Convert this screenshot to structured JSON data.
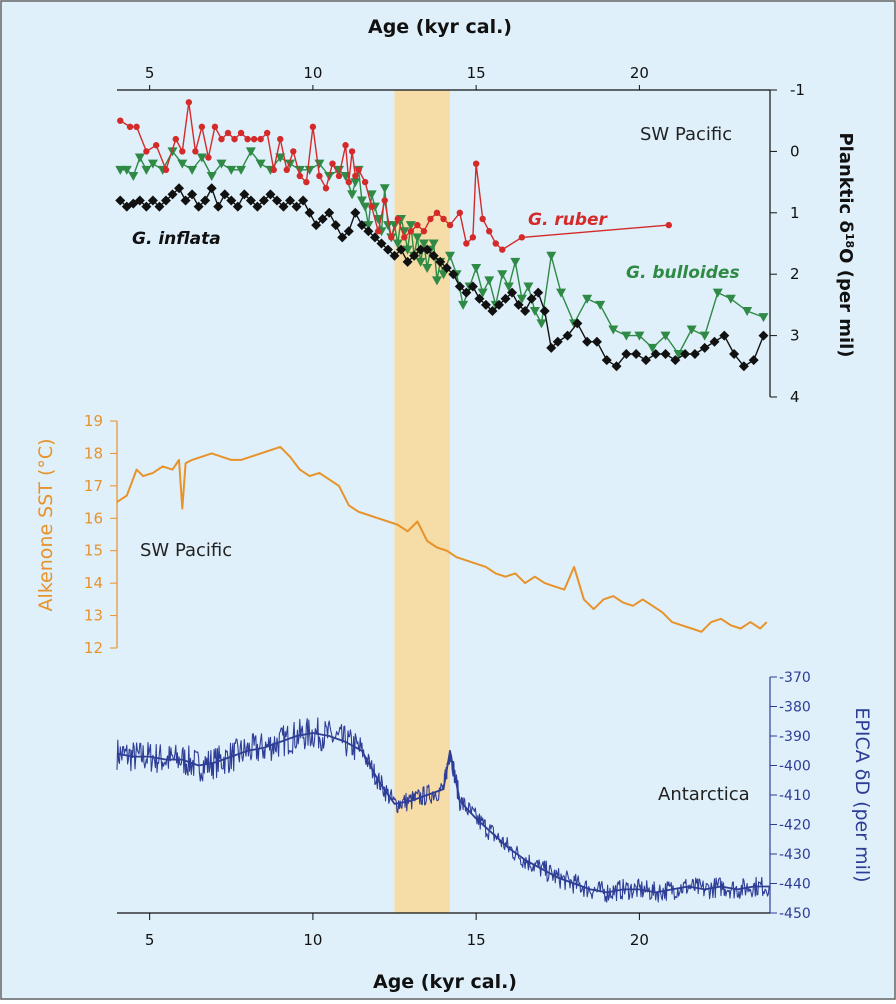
{
  "colors": {
    "background": "#dff0fa",
    "border": "#555555",
    "highlight_band": "#f6dca6",
    "red": "#d42a2a",
    "green": "#2e8a45",
    "black": "#111111",
    "orange": "#e8922a",
    "blue": "#2e3d96",
    "axis": "#111111"
  },
  "chart_data": [
    {
      "type": "line",
      "panel": "planktic",
      "top_xlabel": "Age (kyr cal.)",
      "x_ticks": [
        5,
        10,
        15,
        20
      ],
      "xlim": [
        4,
        24
      ],
      "ylabel": "Planktic δ18O (per mil)",
      "ylabel_parts": [
        "Planktic δ",
        "18",
        "O (per mil)"
      ],
      "y_ticks": [
        "-1",
        "0",
        "1",
        "2",
        "3",
        "4"
      ],
      "ylim": [
        -1,
        4
      ],
      "y_inverted": true,
      "region_label": "SW Pacific",
      "highlight_band": [
        12.5,
        14.2
      ],
      "series": [
        {
          "name": "G. ruber",
          "marker": "circle",
          "x": [
            4.1,
            4.4,
            4.6,
            4.9,
            5.2,
            5.5,
            5.8,
            6.0,
            6.2,
            6.4,
            6.6,
            6.8,
            7.0,
            7.2,
            7.4,
            7.6,
            7.8,
            8.0,
            8.2,
            8.4,
            8.6,
            8.8,
            9.0,
            9.2,
            9.4,
            9.6,
            9.8,
            10.0,
            10.2,
            10.4,
            10.6,
            10.8,
            11.0,
            11.1,
            11.2,
            11.3,
            11.4,
            11.6,
            11.8,
            12.0,
            12.2,
            12.4,
            12.6,
            12.8,
            13.0,
            13.2,
            13.4,
            13.6,
            13.8,
            14.0,
            14.2,
            14.5,
            14.7,
            14.9,
            15.0,
            15.2,
            15.4,
            15.6,
            15.8,
            16.4,
            20.9
          ],
          "y": [
            -0.5,
            -0.4,
            -0.4,
            0.0,
            -0.1,
            0.3,
            -0.2,
            0.0,
            -0.8,
            0.0,
            -0.4,
            0.1,
            -0.4,
            -0.2,
            -0.3,
            -0.2,
            -0.3,
            -0.2,
            -0.2,
            -0.2,
            -0.3,
            0.3,
            -0.2,
            0.3,
            0.0,
            0.4,
            0.5,
            -0.4,
            0.4,
            0.6,
            0.2,
            0.4,
            -0.1,
            0.5,
            0.0,
            0.4,
            0.3,
            0.5,
            0.9,
            1.3,
            0.8,
            1.4,
            1.1,
            1.4,
            1.3,
            1.2,
            1.3,
            1.1,
            1.0,
            1.1,
            1.2,
            1.0,
            1.5,
            1.4,
            0.2,
            1.1,
            1.3,
            1.5,
            1.6,
            1.4,
            1.2
          ]
        },
        {
          "name": "G. bulloides",
          "marker": "triangle",
          "x": [
            4.1,
            4.3,
            4.5,
            4.7,
            4.9,
            5.1,
            5.4,
            5.7,
            6.0,
            6.3,
            6.6,
            6.9,
            7.2,
            7.5,
            7.8,
            8.1,
            8.4,
            8.7,
            9.0,
            9.3,
            9.6,
            9.9,
            10.2,
            10.5,
            10.8,
            11.0,
            11.2,
            11.3,
            11.4,
            11.5,
            11.6,
            11.7,
            11.8,
            11.9,
            12.0,
            12.1,
            12.2,
            12.3,
            12.4,
            12.5,
            12.6,
            12.7,
            12.8,
            12.9,
            13.0,
            13.1,
            13.2,
            13.3,
            13.4,
            13.5,
            13.6,
            13.7,
            13.8,
            13.9,
            14.0,
            14.2,
            14.4,
            14.6,
            14.8,
            15.0,
            15.2,
            15.4,
            15.6,
            15.8,
            16.0,
            16.2,
            16.4,
            16.6,
            16.8,
            17.0,
            17.3,
            17.6,
            18.0,
            18.4,
            18.8,
            19.2,
            19.6,
            20.0,
            20.4,
            20.8,
            21.2,
            21.6,
            22.0,
            22.4,
            22.8,
            23.3,
            23.8
          ],
          "y": [
            0.3,
            0.3,
            0.4,
            0.1,
            0.3,
            0.2,
            0.3,
            0.0,
            0.2,
            0.3,
            0.1,
            0.4,
            0.2,
            0.3,
            0.3,
            0.0,
            0.2,
            0.3,
            0.1,
            0.2,
            0.3,
            0.3,
            0.2,
            0.4,
            0.3,
            0.4,
            0.7,
            0.5,
            0.3,
            0.8,
            0.9,
            1.2,
            0.7,
            0.9,
            1.1,
            1.3,
            0.6,
            1.2,
            1.4,
            1.2,
            1.5,
            1.1,
            1.3,
            1.6,
            1.2,
            1.7,
            1.4,
            1.8,
            1.5,
            1.9,
            1.6,
            1.5,
            2.1,
            1.8,
            2.0,
            1.7,
            2.0,
            2.5,
            2.2,
            1.9,
            2.3,
            2.1,
            2.5,
            2.0,
            2.2,
            1.8,
            2.4,
            2.2,
            2.6,
            2.8,
            1.7,
            2.3,
            2.8,
            2.4,
            2.5,
            2.9,
            3.0,
            3.0,
            3.2,
            3.0,
            3.3,
            2.9,
            3.0,
            2.3,
            2.4,
            2.6,
            2.7
          ]
        },
        {
          "name": "G. inflata",
          "marker": "diamond",
          "x": [
            4.1,
            4.3,
            4.5,
            4.7,
            4.9,
            5.1,
            5.3,
            5.5,
            5.7,
            5.9,
            6.1,
            6.3,
            6.5,
            6.7,
            6.9,
            7.1,
            7.3,
            7.5,
            7.7,
            7.9,
            8.1,
            8.3,
            8.5,
            8.7,
            8.9,
            9.1,
            9.3,
            9.5,
            9.7,
            9.9,
            10.1,
            10.3,
            10.5,
            10.7,
            10.9,
            11.1,
            11.3,
            11.5,
            11.7,
            11.9,
            12.1,
            12.3,
            12.5,
            12.7,
            12.9,
            13.1,
            13.3,
            13.5,
            13.7,
            13.9,
            14.1,
            14.3,
            14.5,
            14.7,
            14.9,
            15.1,
            15.3,
            15.5,
            15.7,
            15.9,
            16.1,
            16.3,
            16.5,
            16.7,
            16.9,
            17.1,
            17.3,
            17.5,
            17.8,
            18.1,
            18.4,
            18.7,
            19.0,
            19.3,
            19.6,
            19.9,
            20.2,
            20.5,
            20.8,
            21.1,
            21.4,
            21.7,
            22.0,
            22.3,
            22.6,
            22.9,
            23.2,
            23.5,
            23.8
          ],
          "y": [
            0.8,
            0.9,
            0.85,
            0.8,
            0.9,
            0.8,
            0.9,
            0.8,
            0.7,
            0.6,
            0.8,
            0.7,
            0.9,
            0.8,
            0.6,
            0.9,
            0.7,
            0.8,
            0.9,
            0.7,
            0.8,
            0.9,
            0.8,
            0.7,
            0.8,
            0.9,
            0.8,
            0.9,
            0.8,
            1.0,
            1.2,
            1.1,
            1.0,
            1.2,
            1.4,
            1.3,
            1.0,
            1.2,
            1.3,
            1.4,
            1.5,
            1.6,
            1.7,
            1.6,
            1.8,
            1.7,
            1.6,
            1.6,
            1.7,
            1.8,
            1.9,
            2.0,
            2.2,
            2.3,
            2.2,
            2.4,
            2.5,
            2.6,
            2.5,
            2.4,
            2.3,
            2.5,
            2.6,
            2.4,
            2.3,
            2.6,
            3.2,
            3.1,
            3.0,
            2.8,
            3.1,
            3.1,
            3.4,
            3.5,
            3.3,
            3.3,
            3.4,
            3.3,
            3.3,
            3.4,
            3.3,
            3.3,
            3.2,
            3.1,
            3.0,
            3.3,
            3.5,
            3.4,
            3.0
          ]
        }
      ]
    },
    {
      "type": "line",
      "panel": "alkenone",
      "ylabel": "Alkenone SST (°C)",
      "y_ticks": [
        "19",
        "18",
        "17",
        "16",
        "15",
        "14",
        "13",
        "12"
      ],
      "ylim": [
        12,
        19
      ],
      "xlim": [
        4,
        24
      ],
      "region_label": "SW Pacific",
      "series": [
        {
          "name": "",
          "x": [
            4.0,
            4.3,
            4.6,
            4.8,
            5.1,
            5.4,
            5.7,
            5.9,
            6.0,
            6.1,
            6.3,
            6.6,
            6.9,
            7.2,
            7.5,
            7.8,
            8.1,
            8.4,
            8.7,
            9.0,
            9.3,
            9.6,
            9.9,
            10.2,
            10.5,
            10.8,
            11.1,
            11.4,
            11.7,
            12.0,
            12.3,
            12.6,
            12.9,
            13.2,
            13.5,
            13.8,
            14.1,
            14.4,
            14.7,
            15.0,
            15.3,
            15.6,
            15.9,
            16.2,
            16.5,
            16.8,
            17.1,
            17.4,
            17.7,
            18.0,
            18.3,
            18.6,
            18.9,
            19.2,
            19.5,
            19.8,
            20.1,
            20.4,
            20.7,
            21.0,
            21.3,
            21.6,
            21.9,
            22.2,
            22.5,
            22.8,
            23.1,
            23.4,
            23.7,
            23.9
          ],
          "y": [
            16.5,
            16.7,
            17.5,
            17.3,
            17.4,
            17.6,
            17.5,
            17.8,
            16.3,
            17.7,
            17.8,
            17.9,
            18.0,
            17.9,
            17.8,
            17.8,
            17.9,
            18.0,
            18.1,
            18.2,
            17.9,
            17.5,
            17.3,
            17.4,
            17.2,
            17.0,
            16.4,
            16.2,
            16.1,
            16.0,
            15.9,
            15.8,
            15.6,
            15.9,
            15.3,
            15.1,
            15.0,
            14.8,
            14.7,
            14.6,
            14.5,
            14.3,
            14.2,
            14.3,
            14.0,
            14.2,
            14.0,
            13.9,
            13.8,
            14.5,
            13.5,
            13.2,
            13.5,
            13.6,
            13.4,
            13.3,
            13.5,
            13.3,
            13.1,
            12.8,
            12.7,
            12.6,
            12.5,
            12.8,
            12.9,
            12.7,
            12.6,
            12.8,
            12.6,
            12.8
          ]
        }
      ]
    },
    {
      "type": "line",
      "panel": "epica",
      "ylabel": "EPICA δD (per mil)",
      "y_ticks": [
        "-370",
        "-380",
        "-390",
        "-400",
        "-410",
        "-420",
        "-430",
        "-440",
        "-450"
      ],
      "ylim": [
        -450,
        -370
      ],
      "xlim": [
        4,
        24
      ],
      "x_ticks": [
        5,
        10,
        15,
        20
      ],
      "xlabel": "Age (kyr cal.)",
      "region_label": "Antarctica",
      "series": [
        {
          "name": "",
          "x": [
            4.0,
            4.5,
            5.0,
            5.5,
            6.0,
            6.5,
            7.0,
            7.5,
            8.0,
            8.5,
            9.0,
            9.5,
            10.0,
            10.5,
            11.0,
            11.5,
            12.0,
            12.5,
            13.0,
            13.5,
            14.0,
            14.2,
            14.5,
            15.0,
            15.5,
            16.0,
            16.5,
            17.0,
            17.5,
            18.0,
            18.5,
            19.0,
            19.5,
            20.0,
            20.5,
            21.0,
            21.5,
            22.0,
            22.5,
            23.0,
            23.5,
            24.0
          ],
          "y": [
            -396,
            -397,
            -397,
            -398,
            -398,
            -400,
            -399,
            -397,
            -395,
            -394,
            -392,
            -390,
            -389,
            -390,
            -392,
            -395,
            -405,
            -413,
            -412,
            -410,
            -408,
            -395,
            -412,
            -418,
            -423,
            -428,
            -432,
            -435,
            -438,
            -440,
            -442,
            -443,
            -442,
            -442,
            -443,
            -442,
            -441,
            -442,
            -441,
            -442,
            -441,
            -441
          ]
        }
      ]
    }
  ]
}
